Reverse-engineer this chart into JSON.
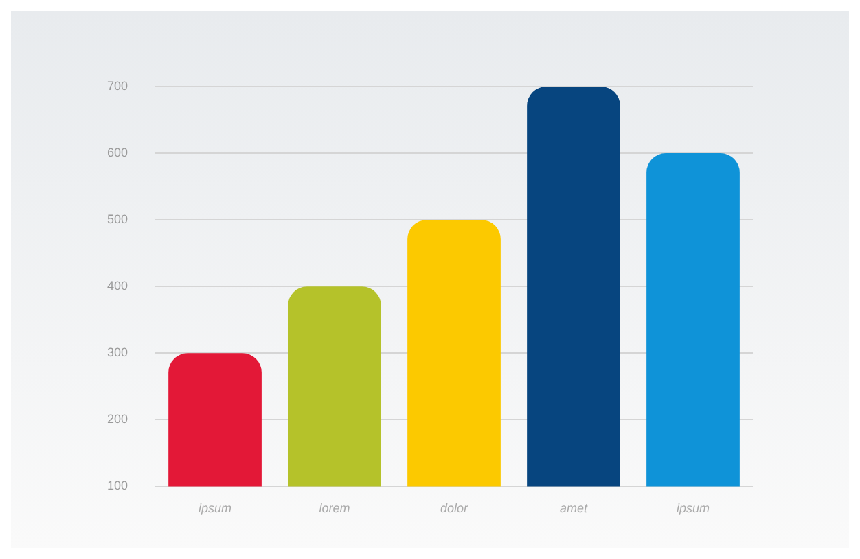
{
  "chart_data": {
    "type": "bar",
    "categories": [
      "ipsum",
      "lorem",
      "dolor",
      "amet",
      "ipsum"
    ],
    "values": [
      300,
      400,
      500,
      700,
      600
    ],
    "colors": [
      "#e31837",
      "#b5c22a",
      "#fcc900",
      "#07457f",
      "#0f93d8"
    ],
    "ylim": [
      100,
      700
    ],
    "yticks": [
      100,
      200,
      300,
      400,
      500,
      600,
      700
    ],
    "grid": "y"
  }
}
